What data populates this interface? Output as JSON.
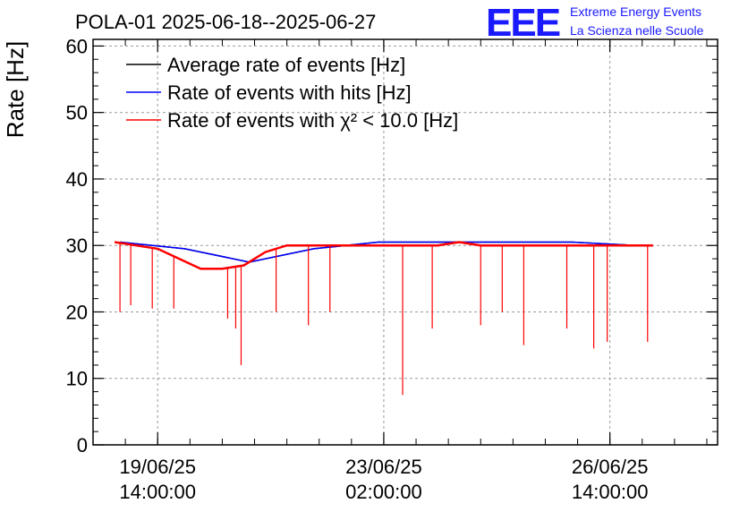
{
  "chart_data": {
    "type": "line",
    "title": "POLA-01 2025-06-18--2025-06-27",
    "ylabel": "Rate [Hz]",
    "xlabel": "",
    "ylim": [
      0,
      61
    ],
    "yticks": [
      0,
      10,
      20,
      30,
      40,
      50,
      60
    ],
    "xlim": [
      "2025-06-18 14:00",
      "2025-06-28 06:00"
    ],
    "xticks": [
      {
        "value": "2025-06-19 14:00",
        "line1": "19/06/25",
        "line2": "14:00:00"
      },
      {
        "value": "2025-06-23 02:00",
        "line1": "23/06/25",
        "line2": "02:00:00"
      },
      {
        "value": "2025-06-26 14:00",
        "line1": "26/06/25",
        "line2": "14:00:00"
      }
    ],
    "grid": true,
    "legend_position": "top-left",
    "series": [
      {
        "name": "Average rate of events [Hz]",
        "color": "#000000",
        "x": [
          "2025-06-19 00:00",
          "2025-06-20 00:00",
          "2025-06-21 00:00",
          "2025-06-22 00:00",
          "2025-06-23 00:00",
          "2025-06-24 00:00",
          "2025-06-25 00:00",
          "2025-06-26 00:00",
          "2025-06-27 00:00",
          "2025-06-27 04:00"
        ],
        "y": [
          30.5,
          29.5,
          27.5,
          29.5,
          30.5,
          30.5,
          30.5,
          30.5,
          30.0,
          30.0
        ]
      },
      {
        "name": "Rate of events with hits [Hz]",
        "color": "#0000ff",
        "x": [
          "2025-06-19 00:00",
          "2025-06-20 00:00",
          "2025-06-21 00:00",
          "2025-06-22 00:00",
          "2025-06-23 00:00",
          "2025-06-24 00:00",
          "2025-06-25 00:00",
          "2025-06-26 00:00",
          "2025-06-27 00:00",
          "2025-06-27 04:00"
        ],
        "y": [
          30.5,
          29.5,
          27.5,
          29.5,
          30.5,
          30.5,
          30.5,
          30.5,
          30.0,
          30.0
        ]
      },
      {
        "name": "Rate of events with χ² < 10.0 [Hz]",
        "color": "#ff0000",
        "x": [
          "2025-06-18 22:00",
          "2025-06-19 06:00",
          "2025-06-19 14:00",
          "2025-06-19 22:00",
          "2025-06-20 06:00",
          "2025-06-20 14:00",
          "2025-06-20 22:00",
          "2025-06-21 06:00",
          "2025-06-21 14:00",
          "2025-06-21 22:00",
          "2025-06-22 06:00",
          "2025-06-22 14:00",
          "2025-06-22 22:00",
          "2025-06-23 06:00",
          "2025-06-23 14:00",
          "2025-06-23 22:00",
          "2025-06-24 06:00",
          "2025-06-24 14:00",
          "2025-06-24 22:00",
          "2025-06-25 06:00",
          "2025-06-25 14:00",
          "2025-06-25 22:00",
          "2025-06-26 06:00",
          "2025-06-26 14:00",
          "2025-06-26 22:00",
          "2025-06-27 06:00"
        ],
        "y": [
          30.5,
          30.0,
          29.5,
          28.0,
          26.5,
          26.5,
          27.0,
          29.0,
          30.0,
          30.0,
          30.0,
          30.0,
          30.0,
          30.0,
          30.0,
          30.0,
          30.5,
          30.0,
          30.0,
          30.0,
          30.0,
          30.0,
          30.0,
          30.0,
          30.0,
          30.0
        ],
        "dips": [
          {
            "x": "2025-06-19 00:00",
            "y": 20.0
          },
          {
            "x": "2025-06-19 04:00",
            "y": 21.0
          },
          {
            "x": "2025-06-19 12:00",
            "y": 20.5
          },
          {
            "x": "2025-06-19 20:00",
            "y": 20.5
          },
          {
            "x": "2025-06-20 16:00",
            "y": 19.0
          },
          {
            "x": "2025-06-20 19:00",
            "y": 17.5
          },
          {
            "x": "2025-06-20 21:00",
            "y": 12.0
          },
          {
            "x": "2025-06-21 10:00",
            "y": 20.0
          },
          {
            "x": "2025-06-21 22:00",
            "y": 18.0
          },
          {
            "x": "2025-06-22 06:00",
            "y": 20.0
          },
          {
            "x": "2025-06-23 09:00",
            "y": 7.5
          },
          {
            "x": "2025-06-23 20:00",
            "y": 17.5
          },
          {
            "x": "2025-06-24 14:00",
            "y": 18.0
          },
          {
            "x": "2025-06-24 22:00",
            "y": 20.0
          },
          {
            "x": "2025-06-25 06:00",
            "y": 15.0
          },
          {
            "x": "2025-06-25 22:00",
            "y": 17.5
          },
          {
            "x": "2025-06-26 08:00",
            "y": 14.5
          },
          {
            "x": "2025-06-26 13:00",
            "y": 15.5
          },
          {
            "x": "2025-06-27 04:00",
            "y": 15.5
          }
        ]
      }
    ]
  },
  "logo": {
    "big": "EEE",
    "line1": "Extreme Energy Events",
    "line2": "La Scienza nelle Scuole"
  }
}
